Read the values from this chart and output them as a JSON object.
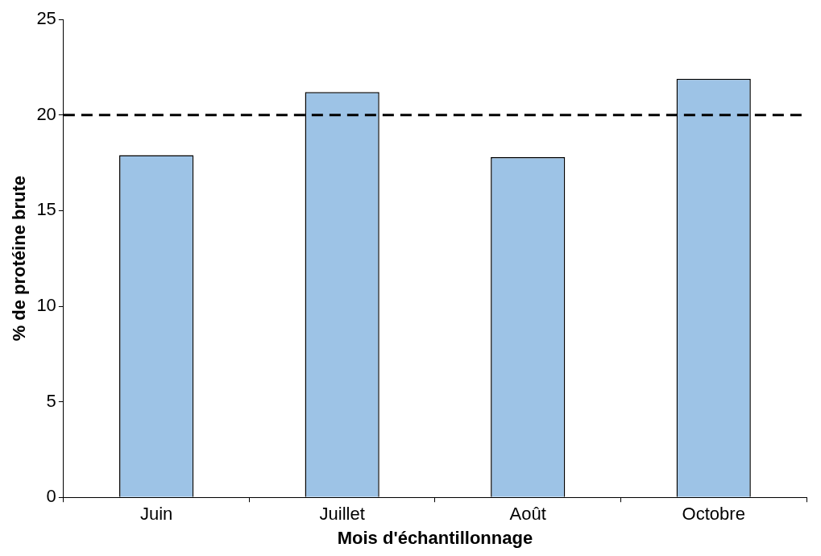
{
  "chart_data": {
    "type": "bar",
    "xlabel": "Mois d'échantillonnage",
    "ylabel": "% de protéine brute",
    "categories": [
      "Juin",
      "Juillet",
      "Août",
      "Octobre"
    ],
    "values": [
      17.9,
      21.2,
      17.8,
      21.9
    ],
    "color": "#9dc3e6",
    "ylim": [
      0,
      25
    ],
    "yticks": [
      0,
      5,
      10,
      15,
      20,
      25
    ],
    "grid": false,
    "legend": false,
    "ref_lines": [
      {
        "axis": "y",
        "value": 20,
        "color": "#000000",
        "line_style": "dashed"
      }
    ]
  }
}
